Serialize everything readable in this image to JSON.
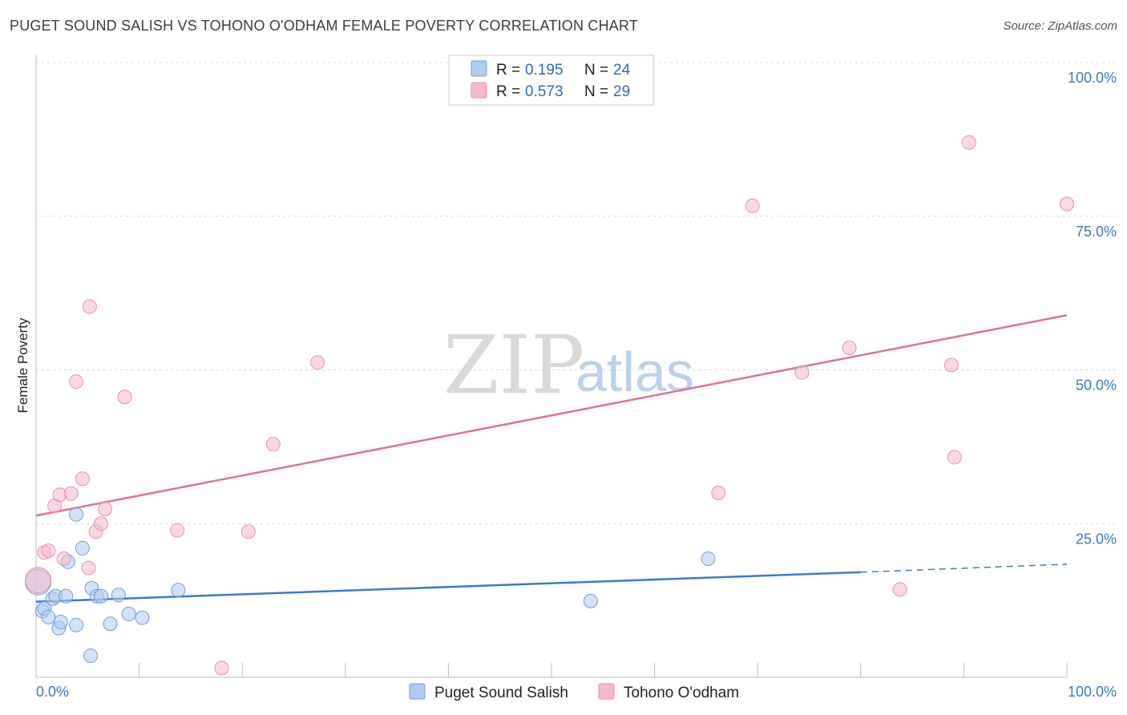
{
  "title": "PUGET SOUND SALISH VS TOHONO O'ODHAM FEMALE POVERTY CORRELATION CHART",
  "source": "Source: ZipAtlas.com",
  "watermark": {
    "zip": "ZIP",
    "atlas": "atlas"
  },
  "colors": {
    "blue": "#3b78d0",
    "blue_fill": "#aecbf0",
    "pink": "#e0709a",
    "pink_fill": "#f5b8cc",
    "axis_label": "#3b78c8",
    "grid": "#d8d8d8"
  },
  "legend": {
    "rows": [
      {
        "r_label": "R = ",
        "r_value": "0.195",
        "n_label": "N = ",
        "n_value": "24"
      },
      {
        "r_label": "R = ",
        "r_value": "0.573",
        "n_label": "N = ",
        "n_value": "29"
      }
    ]
  },
  "chart_data": {
    "type": "scatter",
    "title": "PUGET SOUND SALISH VS TOHONO O'ODHAM FEMALE POVERTY CORRELATION CHART",
    "xlabel": "",
    "ylabel": "Female Poverty",
    "xlim": [
      0,
      100
    ],
    "ylim": [
      0,
      100
    ],
    "x_tick_labels": [
      "0.0%",
      "100.0%"
    ],
    "y_ticks": [
      25,
      50,
      75,
      100
    ],
    "y_tick_labels": [
      "25.0%",
      "50.0%",
      "75.0%",
      "100.0%"
    ],
    "grid": true,
    "legend_position": "top-center",
    "series": [
      {
        "name": "Puget Sound Salish",
        "color": "#3b78d0",
        "r": 0.195,
        "n": 24,
        "points": [
          [
            0.2,
            15.5
          ],
          [
            0.6,
            10.8
          ],
          [
            0.8,
            11.2
          ],
          [
            1.2,
            9.8
          ],
          [
            1.6,
            12.8
          ],
          [
            1.9,
            13.2
          ],
          [
            2.2,
            8.0
          ],
          [
            2.4,
            9.0
          ],
          [
            2.9,
            13.2
          ],
          [
            3.1,
            18.8
          ],
          [
            3.9,
            8.5
          ],
          [
            3.9,
            26.5
          ],
          [
            4.5,
            21.0
          ],
          [
            5.3,
            3.5
          ],
          [
            5.4,
            14.5
          ],
          [
            5.9,
            13.2
          ],
          [
            6.3,
            13.2
          ],
          [
            7.2,
            8.7
          ],
          [
            8.0,
            13.4
          ],
          [
            9.0,
            10.3
          ],
          [
            10.3,
            9.7
          ],
          [
            13.8,
            14.2
          ],
          [
            53.8,
            12.4
          ],
          [
            65.2,
            19.3
          ]
        ],
        "trend": {
          "x0": 0,
          "y0": 12.3,
          "x1": 80,
          "y1": 17.1,
          "x_dash_end": 100,
          "y_dash_end": 18.4
        }
      },
      {
        "name": "Tohono O'odham",
        "color": "#e0709a",
        "r": 0.573,
        "n": 29,
        "points": [
          [
            0.2,
            15.8
          ],
          [
            0.8,
            20.3
          ],
          [
            1.2,
            20.6
          ],
          [
            1.8,
            27.9
          ],
          [
            2.3,
            29.7
          ],
          [
            2.7,
            19.3
          ],
          [
            3.4,
            29.9
          ],
          [
            3.9,
            48.1
          ],
          [
            4.5,
            32.3
          ],
          [
            5.1,
            17.8
          ],
          [
            5.2,
            60.3
          ],
          [
            5.8,
            23.7
          ],
          [
            6.3,
            25.0
          ],
          [
            6.7,
            27.4
          ],
          [
            8.6,
            45.6
          ],
          [
            13.7,
            23.9
          ],
          [
            18.0,
            1.5
          ],
          [
            20.6,
            23.7
          ],
          [
            23.0,
            37.9
          ],
          [
            27.3,
            51.2
          ],
          [
            66.2,
            30.0
          ],
          [
            69.5,
            76.7
          ],
          [
            74.3,
            49.6
          ],
          [
            78.9,
            53.6
          ],
          [
            83.8,
            14.3
          ],
          [
            88.8,
            50.8
          ],
          [
            89.1,
            35.8
          ],
          [
            90.5,
            87.0
          ],
          [
            100.0,
            77.0
          ]
        ],
        "trend": {
          "x0": 0,
          "y0": 26.3,
          "x1": 100,
          "y1": 58.9
        }
      }
    ]
  }
}
